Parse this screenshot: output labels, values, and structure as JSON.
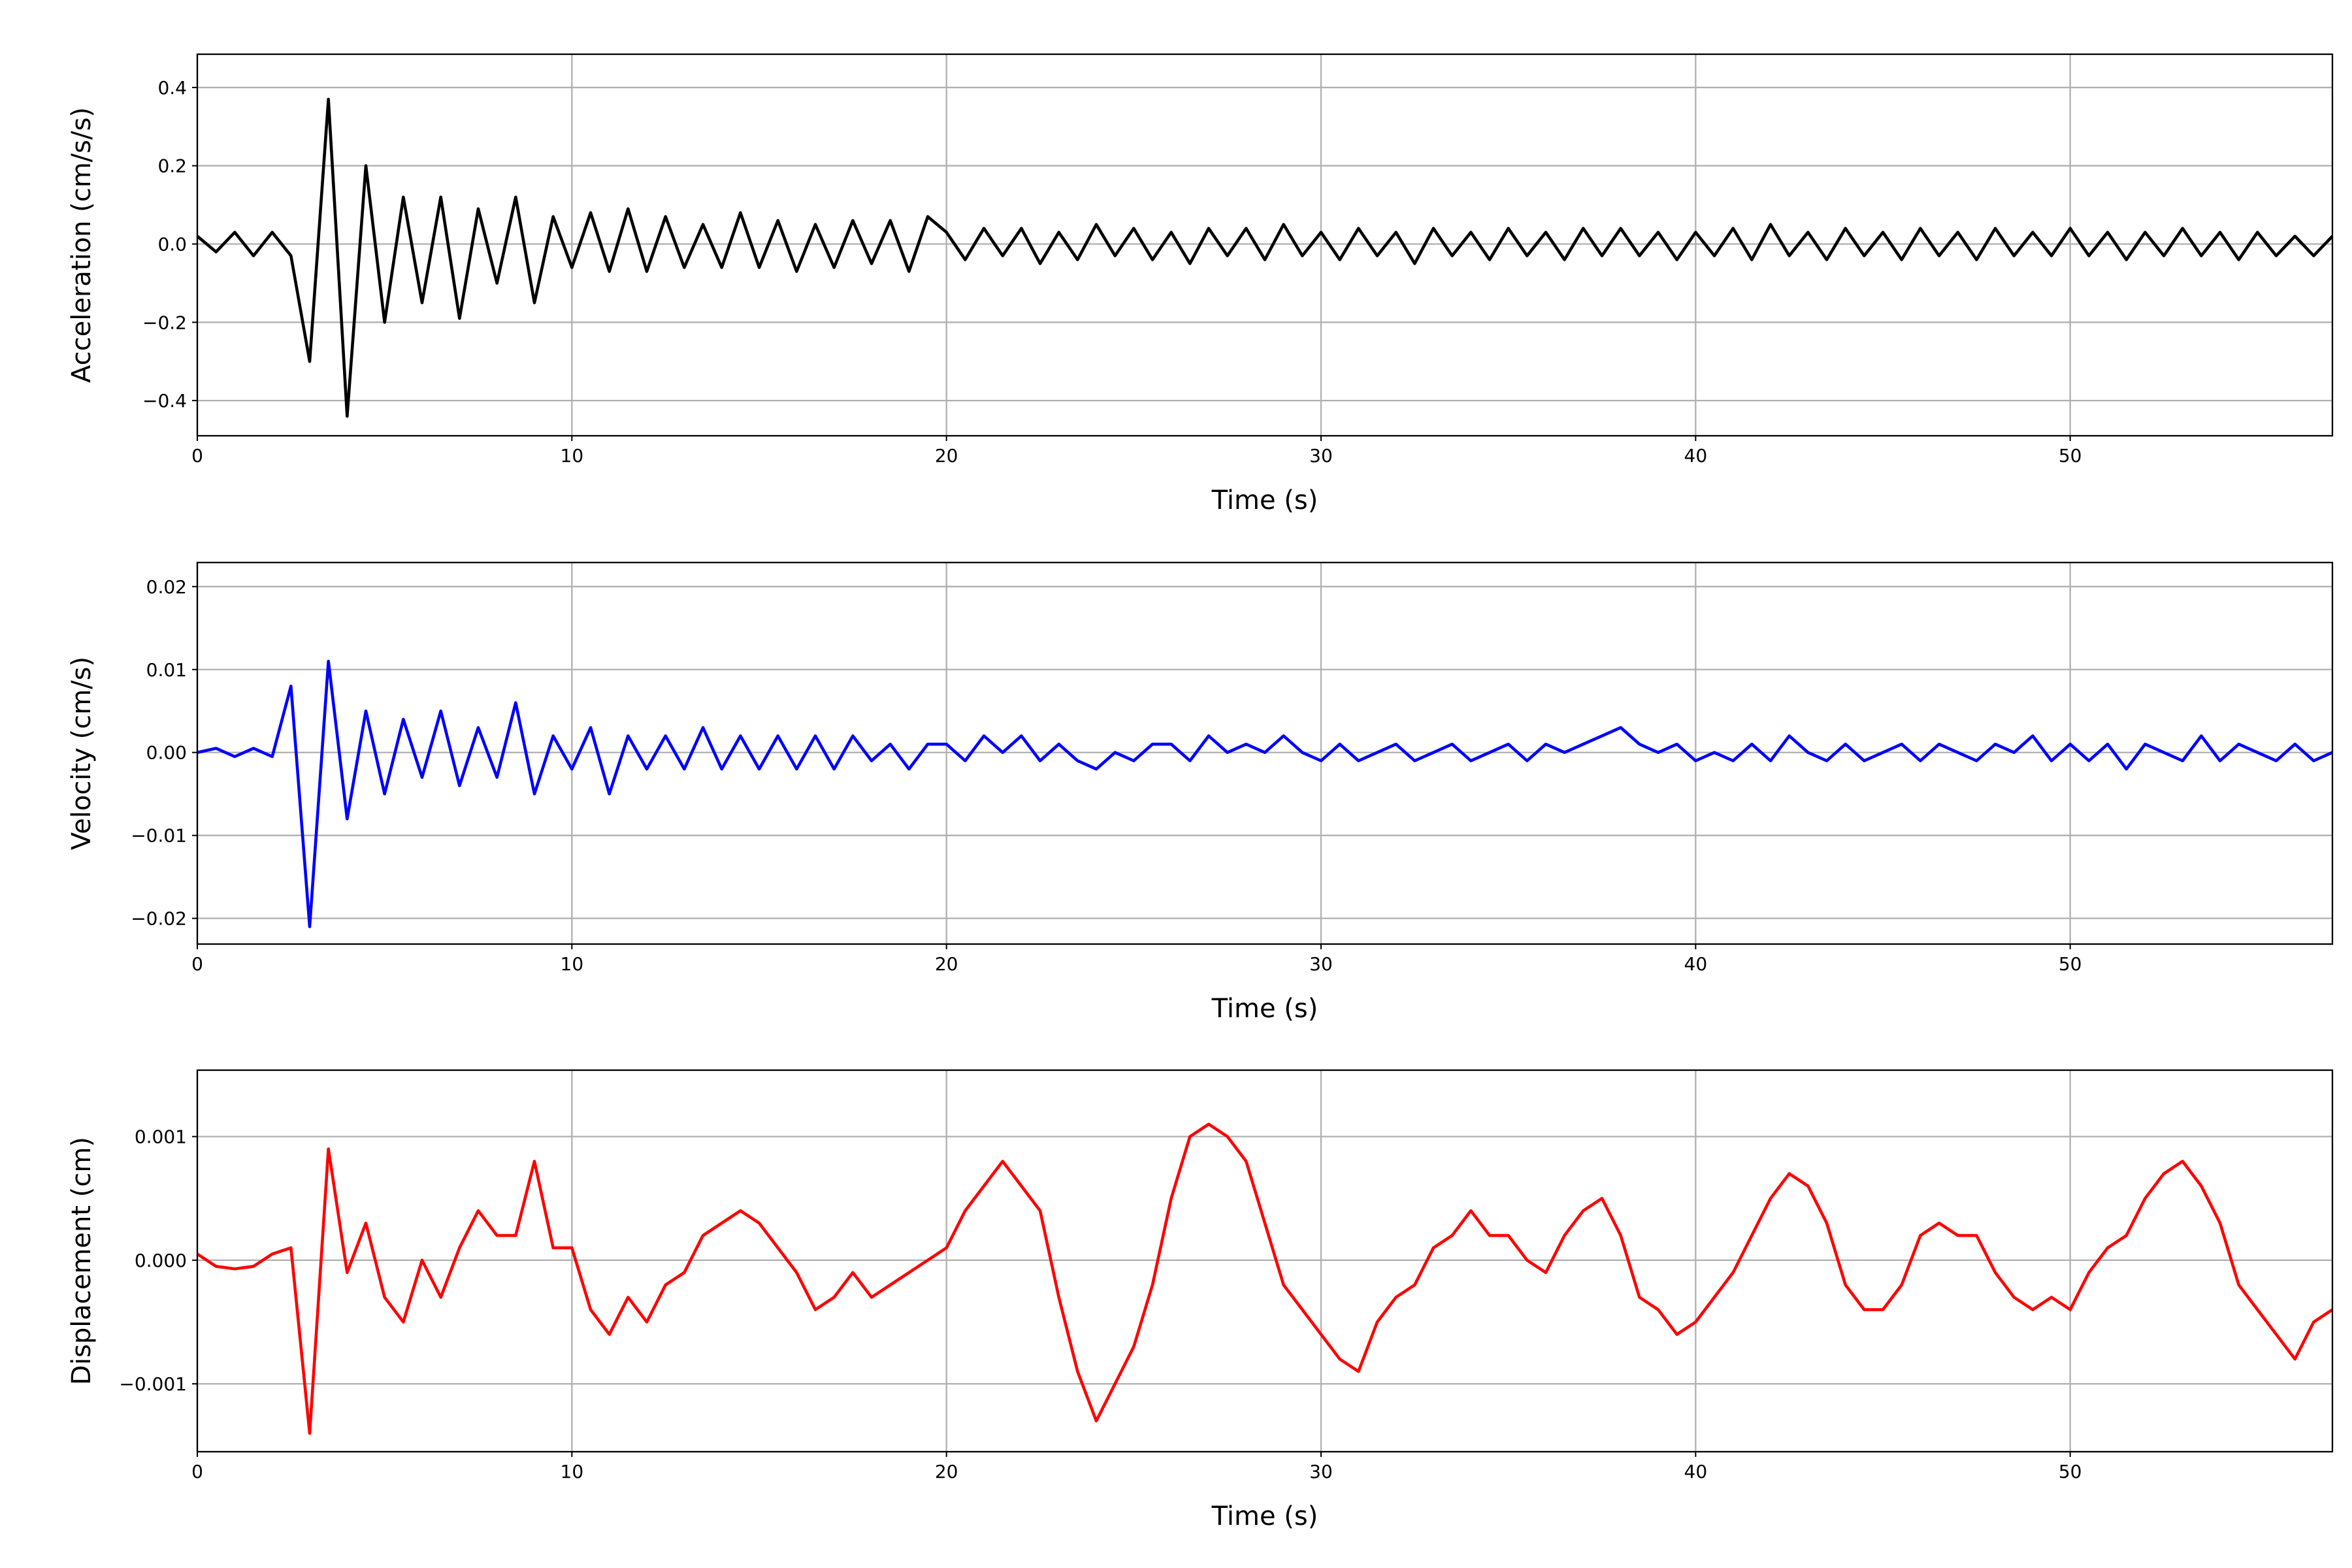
{
  "chart_data": [
    {
      "type": "line",
      "ylabel": "Acceleration (cm/s/s)",
      "xlabel": "Time (s)",
      "color": "#000000",
      "grid": true,
      "xlim": [
        0,
        57
      ],
      "xticks": [
        0,
        10,
        20,
        30,
        40,
        50
      ],
      "ylim": [
        -0.49,
        0.485
      ],
      "yticks": [
        {
          "value": -0.4,
          "label": "−0.4"
        },
        {
          "value": -0.2,
          "label": "−0.2"
        },
        {
          "value": 0,
          "label": "0.0"
        },
        0.2,
        0.4
      ],
      "x": [
        0,
        0.5,
        1,
        1.5,
        2,
        2.5,
        3,
        3.5,
        4,
        4.5,
        5,
        5.5,
        6,
        6.5,
        7,
        7.5,
        8,
        8.5,
        9,
        9.5,
        10,
        10.5,
        11,
        11.5,
        12,
        12.5,
        13,
        13.5,
        14,
        14.5,
        15,
        15.5,
        16,
        16.5,
        17,
        17.5,
        18,
        18.5,
        19,
        19.5,
        20,
        20.5,
        21,
        21.5,
        22,
        22.5,
        23,
        23.5,
        24,
        24.5,
        25,
        25.5,
        26,
        26.5,
        27,
        27.5,
        28,
        28.5,
        29,
        29.5,
        30,
        30.5,
        31,
        31.5,
        32,
        32.5,
        33,
        33.5,
        34,
        34.5,
        35,
        35.5,
        36,
        36.5,
        37,
        37.5,
        38,
        38.5,
        39,
        39.5,
        40,
        40.5,
        41,
        41.5,
        42,
        42.5,
        43,
        43.5,
        44,
        44.5,
        45,
        45.5,
        46,
        46.5,
        47,
        47.5,
        48,
        48.5,
        49,
        49.5,
        50,
        50.5,
        51,
        51.5,
        52,
        52.5,
        53,
        53.5,
        54,
        54.5,
        55,
        55.5,
        56,
        56.5,
        57
      ],
      "values": [
        0.02,
        -0.02,
        0.03,
        -0.03,
        0.03,
        -0.03,
        -0.3,
        0.37,
        -0.44,
        0.2,
        -0.2,
        0.12,
        -0.15,
        0.12,
        -0.19,
        0.09,
        -0.1,
        0.12,
        -0.15,
        0.07,
        -0.06,
        0.08,
        -0.07,
        0.09,
        -0.07,
        0.07,
        -0.06,
        0.05,
        -0.06,
        0.08,
        -0.06,
        0.06,
        -0.07,
        0.05,
        -0.06,
        0.06,
        -0.05,
        0.06,
        -0.07,
        0.07,
        0.03,
        -0.04,
        0.04,
        -0.03,
        0.04,
        -0.05,
        0.03,
        -0.04,
        0.05,
        -0.03,
        0.04,
        -0.04,
        0.03,
        -0.05,
        0.04,
        -0.03,
        0.04,
        -0.04,
        0.05,
        -0.03,
        0.03,
        -0.04,
        0.04,
        -0.03,
        0.03,
        -0.05,
        0.04,
        -0.03,
        0.03,
        -0.04,
        0.04,
        -0.03,
        0.03,
        -0.04,
        0.04,
        -0.03,
        0.04,
        -0.03,
        0.03,
        -0.04,
        0.03,
        -0.03,
        0.04,
        -0.04,
        0.05,
        -0.03,
        0.03,
        -0.04,
        0.04,
        -0.03,
        0.03,
        -0.04,
        0.04,
        -0.03,
        0.03,
        -0.04,
        0.04,
        -0.03,
        0.03,
        -0.03,
        0.04,
        -0.03,
        0.03,
        -0.04,
        0.03,
        -0.03,
        0.04,
        -0.03,
        0.03,
        -0.04,
        0.03,
        -0.03,
        0.02,
        -0.03,
        0.02
      ]
    },
    {
      "type": "line",
      "ylabel": "Velocity (cm/s)",
      "xlabel": "Time (s)",
      "color": "#0000ff",
      "grid": true,
      "xlim": [
        0,
        57
      ],
      "xticks": [
        0,
        10,
        20,
        30,
        40,
        50
      ],
      "ylim": [
        -0.0231,
        0.0229
      ],
      "yticks": [
        {
          "value": -0.02,
          "label": "−0.02"
        },
        {
          "value": -0.01,
          "label": "−0.01"
        },
        {
          "value": 0,
          "label": "0.00"
        },
        {
          "value": 0.01,
          "label": "0.01"
        },
        {
          "value": 0.02,
          "label": "0.02"
        }
      ],
      "x": [
        0,
        0.5,
        1,
        1.5,
        2,
        2.5,
        3,
        3.5,
        4,
        4.5,
        5,
        5.5,
        6,
        6.5,
        7,
        7.5,
        8,
        8.5,
        9,
        9.5,
        10,
        10.5,
        11,
        11.5,
        12,
        12.5,
        13,
        13.5,
        14,
        14.5,
        15,
        15.5,
        16,
        16.5,
        17,
        17.5,
        18,
        18.5,
        19,
        19.5,
        20,
        20.5,
        21,
        21.5,
        22,
        22.5,
        23,
        23.5,
        24,
        24.5,
        25,
        25.5,
        26,
        26.5,
        27,
        27.5,
        28,
        28.5,
        29,
        29.5,
        30,
        30.5,
        31,
        31.5,
        32,
        32.5,
        33,
        33.5,
        34,
        34.5,
        35,
        35.5,
        36,
        36.5,
        37,
        37.5,
        38,
        38.5,
        39,
        39.5,
        40,
        40.5,
        41,
        41.5,
        42,
        42.5,
        43,
        43.5,
        44,
        44.5,
        45,
        45.5,
        46,
        46.5,
        47,
        47.5,
        48,
        48.5,
        49,
        49.5,
        50,
        50.5,
        51,
        51.5,
        52,
        52.5,
        53,
        53.5,
        54,
        54.5,
        55,
        55.5,
        56,
        56.5,
        57
      ],
      "values": [
        0,
        0.0005,
        -0.0005,
        0.0005,
        -0.0005,
        0.008,
        -0.021,
        0.011,
        -0.008,
        0.005,
        -0.005,
        0.004,
        -0.003,
        0.005,
        -0.004,
        0.003,
        -0.003,
        0.006,
        -0.005,
        0.002,
        -0.002,
        0.003,
        -0.005,
        0.002,
        -0.002,
        0.002,
        -0.002,
        0.003,
        -0.002,
        0.002,
        -0.002,
        0.002,
        -0.002,
        0.002,
        -0.002,
        0.002,
        -0.001,
        0.001,
        -0.002,
        0.001,
        0.001,
        -0.001,
        0.002,
        0,
        0.002,
        -0.001,
        0.001,
        -0.001,
        -0.002,
        0,
        -0.001,
        0.001,
        0.001,
        -0.001,
        0.002,
        0,
        0.001,
        0,
        0.002,
        0,
        -0.001,
        0.001,
        -0.001,
        0,
        0.001,
        -0.001,
        0,
        0.001,
        -0.001,
        0,
        0.001,
        -0.001,
        0.001,
        0,
        0.001,
        0.002,
        0.003,
        0.001,
        0,
        0.001,
        -0.001,
        0,
        -0.001,
        0.001,
        -0.001,
        0.002,
        0,
        -0.001,
        0.001,
        -0.001,
        0,
        0.001,
        -0.001,
        0.001,
        0,
        -0.001,
        0.001,
        0,
        0.002,
        -0.001,
        0.001,
        -0.001,
        0.001,
        -0.002,
        0.001,
        0,
        -0.001,
        0.002,
        -0.001,
        0.001,
        0,
        -0.001,
        0.001,
        -0.001,
        0
      ]
    },
    {
      "type": "line",
      "ylabel": "Displacement (cm)",
      "xlabel": "Time (s)",
      "color": "#ff0000",
      "grid": true,
      "xlim": [
        0,
        57
      ],
      "xticks": [
        0,
        10,
        20,
        30,
        40,
        50
      ],
      "ylim": [
        -0.001549,
        0.001537
      ],
      "yticks": [
        {
          "value": -0.001,
          "label": "−0.001"
        },
        {
          "value": 0,
          "label": "0.000"
        },
        {
          "value": 0.001,
          "label": "0.001"
        }
      ],
      "x": [
        0,
        0.5,
        1,
        1.5,
        2,
        2.5,
        3,
        3.5,
        4,
        4.5,
        5,
        5.5,
        6,
        6.5,
        7,
        7.5,
        8,
        8.5,
        9,
        9.5,
        10,
        10.5,
        11,
        11.5,
        12,
        12.5,
        13,
        13.5,
        14,
        14.5,
        15,
        15.5,
        16,
        16.5,
        17,
        17.5,
        18,
        18.5,
        19,
        19.5,
        20,
        20.5,
        21,
        21.5,
        22,
        22.5,
        23,
        23.5,
        24,
        24.5,
        25,
        25.5,
        26,
        26.5,
        27,
        27.5,
        28,
        28.5,
        29,
        29.5,
        30,
        30.5,
        31,
        31.5,
        32,
        32.5,
        33,
        33.5,
        34,
        34.5,
        35,
        35.5,
        36,
        36.5,
        37,
        37.5,
        38,
        38.5,
        39,
        39.5,
        40,
        40.5,
        41,
        41.5,
        42,
        42.5,
        43,
        43.5,
        44,
        44.5,
        45,
        45.5,
        46,
        46.5,
        47,
        47.5,
        48,
        48.5,
        49,
        49.5,
        50,
        50.5,
        51,
        51.5,
        52,
        52.5,
        53,
        53.5,
        54,
        54.5,
        55,
        55.5,
        56,
        56.5,
        57
      ],
      "values": [
        5e-05,
        -5e-05,
        -7e-05,
        -5e-05,
        5e-05,
        0.0001,
        -0.0014,
        0.0009,
        -0.0001,
        0.0003,
        -0.0003,
        -0.0005,
        0,
        -0.0003,
        0.0001,
        0.0004,
        0.0002,
        0.0002,
        0.0008,
        0.0001,
        0.0001,
        -0.0004,
        -0.0006,
        -0.0003,
        -0.0005,
        -0.0002,
        -0.0001,
        0.0002,
        0.0003,
        0.0004,
        0.0003,
        0.0001,
        -0.0001,
        -0.0004,
        -0.0003,
        -0.0001,
        -0.0003,
        -0.0002,
        -0.0001,
        0,
        0.0001,
        0.0004,
        0.0006,
        0.0008,
        0.0006,
        0.0004,
        -0.0003,
        -0.0009,
        -0.0013,
        -0.001,
        -0.0007,
        -0.0002,
        0.0005,
        0.001,
        0.0011,
        0.001,
        0.0008,
        0.0003,
        -0.0002,
        -0.0004,
        -0.0006,
        -0.0008,
        -0.0009,
        -0.0005,
        -0.0003,
        -0.0002,
        0.0001,
        0.0002,
        0.0004,
        0.0002,
        0.0002,
        0,
        -0.0001,
        0.0002,
        0.0004,
        0.0005,
        0.0002,
        -0.0003,
        -0.0004,
        -0.0006,
        -0.0005,
        -0.0003,
        -0.0001,
        0.0002,
        0.0005,
        0.0007,
        0.0006,
        0.0003,
        -0.0002,
        -0.0004,
        -0.0004,
        -0.0002,
        0.0002,
        0.0003,
        0.0002,
        0.0002,
        -0.0001,
        -0.0003,
        -0.0004,
        -0.0003,
        -0.0004,
        -0.0001,
        0.0001,
        0.0002,
        0.0005,
        0.0007,
        0.0008,
        0.0006,
        0.0003,
        -0.0002,
        -0.0004,
        -0.0006,
        -0.0008,
        -0.0005,
        -0.0004
      ]
    }
  ]
}
